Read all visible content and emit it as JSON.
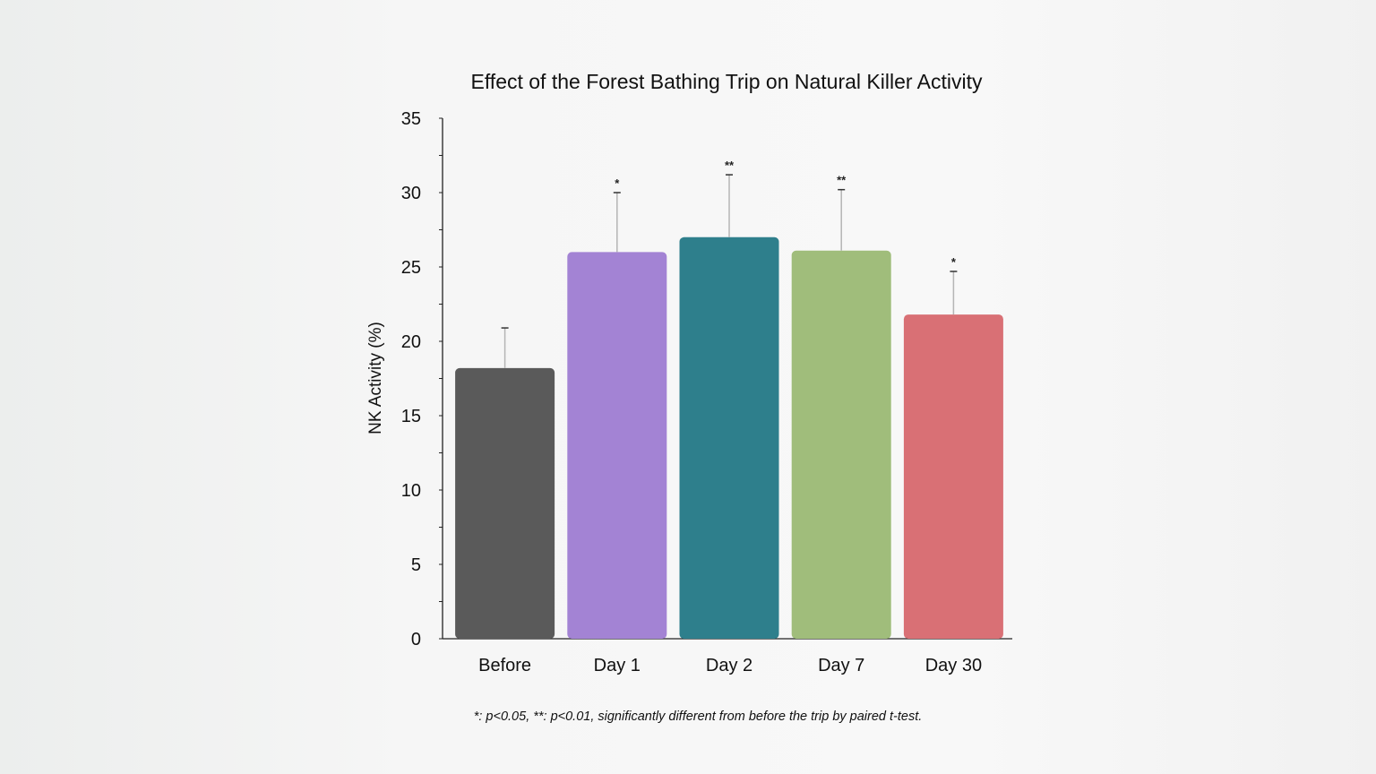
{
  "chart_data": {
    "type": "bar",
    "title": "Effect of the Forest Bathing Trip on Natural Killer Activity",
    "xlabel": "",
    "ylabel": "NK Activity (%)",
    "ylim": [
      0,
      35
    ],
    "yticks": [
      0,
      5,
      10,
      15,
      20,
      25,
      30,
      35
    ],
    "grid": false,
    "categories": [
      "Before",
      "Day 1",
      "Day 2",
      "Day 7",
      "Day 30"
    ],
    "values": [
      18.2,
      26.0,
      27.0,
      26.1,
      21.8
    ],
    "error_upper": [
      20.9,
      30.0,
      31.2,
      30.2,
      24.7
    ],
    "significance": [
      "",
      "*",
      "**",
      "**",
      "*"
    ],
    "colors": [
      "#5a5a5a",
      "#a383d4",
      "#2e7f8c",
      "#a0bd7b",
      "#d97075"
    ],
    "footnote": "*: p<0.05, **: p<0.01, significantly different from before the trip by paired t-test."
  }
}
